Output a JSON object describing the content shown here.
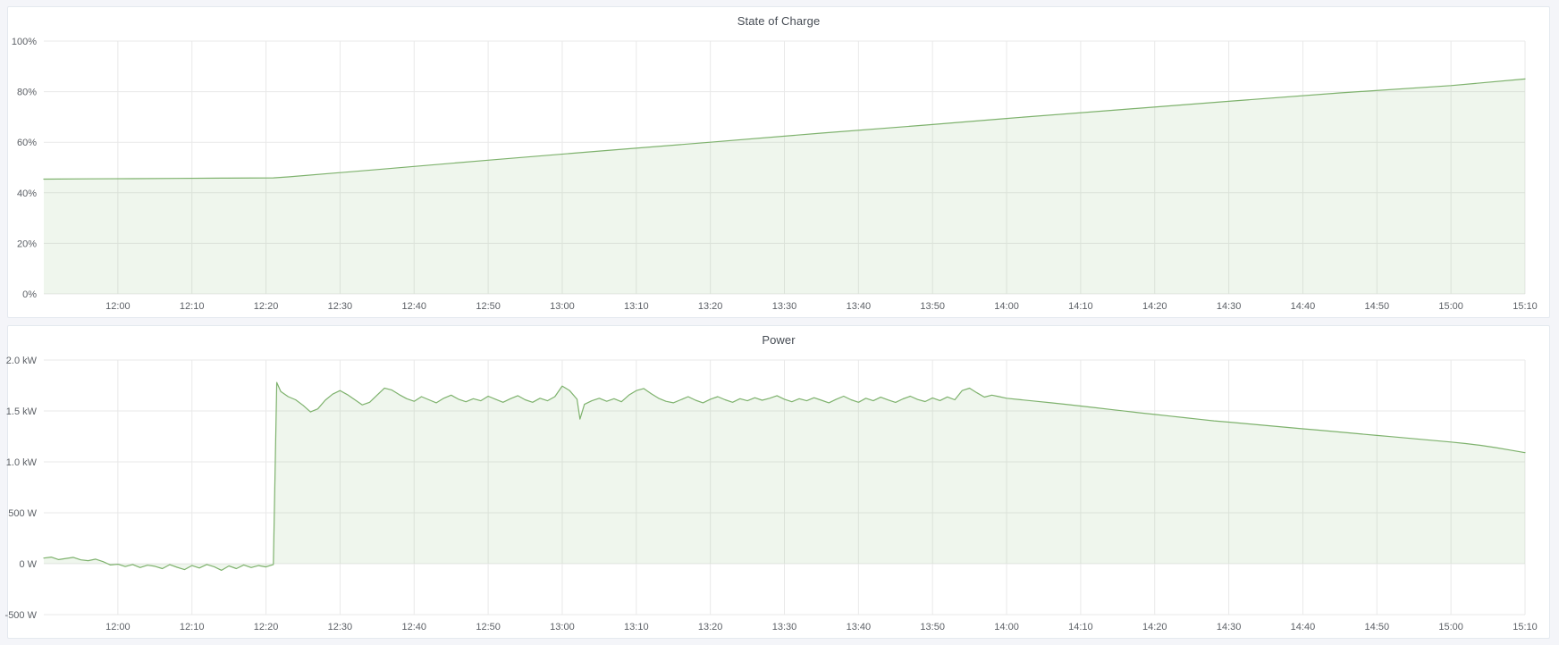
{
  "page": {
    "background": "#f4f5f9",
    "panel_background": "#ffffff",
    "panel_border": "#e4e9ef"
  },
  "colors": {
    "line": "#7eb26d",
    "fill_opacity": 0.12,
    "grid": "#e9e9e9",
    "axis_text": "#5c6066",
    "title_text": "#464c54"
  },
  "chart_data": [
    {
      "type": "area",
      "title": "State of Charge",
      "xlabel": "",
      "ylabel": "",
      "x_unit": "minutes after 12:00",
      "y_unit": "percent",
      "xlim": [
        -10,
        190
      ],
      "ylim": [
        0,
        100
      ],
      "grid": true,
      "legend": "none",
      "x_ticks": [
        [
          0,
          "12:00"
        ],
        [
          10,
          "12:10"
        ],
        [
          20,
          "12:20"
        ],
        [
          30,
          "12:30"
        ],
        [
          40,
          "12:40"
        ],
        [
          50,
          "12:50"
        ],
        [
          60,
          "13:00"
        ],
        [
          70,
          "13:10"
        ],
        [
          80,
          "13:20"
        ],
        [
          90,
          "13:30"
        ],
        [
          100,
          "13:40"
        ],
        [
          110,
          "13:50"
        ],
        [
          120,
          "14:00"
        ],
        [
          130,
          "14:10"
        ],
        [
          140,
          "14:20"
        ],
        [
          150,
          "14:30"
        ],
        [
          160,
          "14:40"
        ],
        [
          170,
          "14:50"
        ],
        [
          180,
          "15:00"
        ],
        [
          190,
          "15:10"
        ]
      ],
      "y_ticks": [
        [
          0,
          "0%"
        ],
        [
          20,
          "20%"
        ],
        [
          40,
          "40%"
        ],
        [
          60,
          "60%"
        ],
        [
          80,
          "80%"
        ],
        [
          100,
          "100%"
        ]
      ],
      "series": [
        {
          "name": "State of Charge",
          "points": [
            [
              -10,
              45.4
            ],
            [
              -4,
              45.5
            ],
            [
              2,
              45.6
            ],
            [
              8,
              45.7
            ],
            [
              14,
              45.8
            ],
            [
              21,
              45.9
            ],
            [
              23,
              46.3
            ],
            [
              35,
              49.2
            ],
            [
              50,
              52.9
            ],
            [
              65,
              56.5
            ],
            [
              80,
              60.0
            ],
            [
              95,
              63.6
            ],
            [
              110,
              67.0
            ],
            [
              120,
              69.4
            ],
            [
              135,
              72.8
            ],
            [
              150,
              76.2
            ],
            [
              165,
              79.5
            ],
            [
              180,
              82.4
            ],
            [
              190,
              85.0
            ]
          ]
        }
      ]
    },
    {
      "type": "area",
      "title": "Power",
      "xlabel": "",
      "ylabel": "",
      "x_unit": "minutes after 12:00",
      "y_unit": "watt",
      "xlim": [
        -10,
        190
      ],
      "ylim": [
        -500,
        2000
      ],
      "grid": true,
      "legend": "none",
      "x_ticks": [
        [
          0,
          "12:00"
        ],
        [
          10,
          "12:10"
        ],
        [
          20,
          "12:20"
        ],
        [
          30,
          "12:30"
        ],
        [
          40,
          "12:40"
        ],
        [
          50,
          "12:50"
        ],
        [
          60,
          "13:00"
        ],
        [
          70,
          "13:10"
        ],
        [
          80,
          "13:20"
        ],
        [
          90,
          "13:30"
        ],
        [
          100,
          "13:40"
        ],
        [
          110,
          "13:50"
        ],
        [
          120,
          "14:00"
        ],
        [
          130,
          "14:10"
        ],
        [
          140,
          "14:20"
        ],
        [
          150,
          "14:30"
        ],
        [
          160,
          "14:40"
        ],
        [
          170,
          "14:50"
        ],
        [
          180,
          "15:00"
        ],
        [
          190,
          "15:10"
        ]
      ],
      "y_ticks": [
        [
          -500,
          "-500 W"
        ],
        [
          0,
          "0 W"
        ],
        [
          500,
          "500 W"
        ],
        [
          1000,
          "1.0 kW"
        ],
        [
          1500,
          "1.5 kW"
        ],
        [
          2000,
          "2.0 kW"
        ]
      ],
      "series": [
        {
          "name": "Power",
          "points": [
            [
              -10,
              55
            ],
            [
              -9,
              65
            ],
            [
              -8,
              40
            ],
            [
              -7,
              52
            ],
            [
              -6,
              62
            ],
            [
              -5,
              38
            ],
            [
              -4,
              30
            ],
            [
              -3,
              45
            ],
            [
              -2,
              20
            ],
            [
              -1,
              -12
            ],
            [
              0,
              -5
            ],
            [
              1,
              -28
            ],
            [
              2,
              -8
            ],
            [
              3,
              -38
            ],
            [
              4,
              -15
            ],
            [
              5,
              -25
            ],
            [
              6,
              -48
            ],
            [
              7,
              -10
            ],
            [
              8,
              -35
            ],
            [
              9,
              -58
            ],
            [
              10,
              -18
            ],
            [
              11,
              -42
            ],
            [
              12,
              -8
            ],
            [
              13,
              -30
            ],
            [
              14,
              -65
            ],
            [
              15,
              -22
            ],
            [
              16,
              -48
            ],
            [
              17,
              -12
            ],
            [
              18,
              -38
            ],
            [
              19,
              -18
            ],
            [
              20,
              -32
            ],
            [
              21,
              -8
            ],
            [
              21.45,
              1780
            ],
            [
              22,
              1690
            ],
            [
              23,
              1640
            ],
            [
              24,
              1610
            ],
            [
              25,
              1555
            ],
            [
              26,
              1490
            ],
            [
              27,
              1520
            ],
            [
              28,
              1605
            ],
            [
              29,
              1665
            ],
            [
              30,
              1700
            ],
            [
              31,
              1660
            ],
            [
              32,
              1610
            ],
            [
              33,
              1560
            ],
            [
              34,
              1585
            ],
            [
              35,
              1655
            ],
            [
              36,
              1725
            ],
            [
              37,
              1705
            ],
            [
              38,
              1660
            ],
            [
              39,
              1620
            ],
            [
              40,
              1595
            ],
            [
              41,
              1640
            ],
            [
              42,
              1610
            ],
            [
              43,
              1580
            ],
            [
              44,
              1625
            ],
            [
              45,
              1655
            ],
            [
              46,
              1615
            ],
            [
              47,
              1590
            ],
            [
              48,
              1620
            ],
            [
              49,
              1600
            ],
            [
              50,
              1645
            ],
            [
              51,
              1615
            ],
            [
              52,
              1585
            ],
            [
              53,
              1620
            ],
            [
              54,
              1650
            ],
            [
              55,
              1610
            ],
            [
              56,
              1585
            ],
            [
              57,
              1625
            ],
            [
              58,
              1600
            ],
            [
              59,
              1640
            ],
            [
              60,
              1745
            ],
            [
              61,
              1700
            ],
            [
              62,
              1615
            ],
            [
              62.4,
              1420
            ],
            [
              63,
              1565
            ],
            [
              64,
              1600
            ],
            [
              65,
              1625
            ],
            [
              66,
              1595
            ],
            [
              67,
              1620
            ],
            [
              68,
              1590
            ],
            [
              69,
              1655
            ],
            [
              70,
              1700
            ],
            [
              71,
              1720
            ],
            [
              72,
              1670
            ],
            [
              73,
              1625
            ],
            [
              74,
              1595
            ],
            [
              75,
              1580
            ],
            [
              76,
              1610
            ],
            [
              77,
              1640
            ],
            [
              78,
              1605
            ],
            [
              79,
              1580
            ],
            [
              80,
              1615
            ],
            [
              81,
              1640
            ],
            [
              82,
              1610
            ],
            [
              83,
              1585
            ],
            [
              84,
              1620
            ],
            [
              85,
              1600
            ],
            [
              86,
              1630
            ],
            [
              87,
              1605
            ],
            [
              88,
              1625
            ],
            [
              89,
              1650
            ],
            [
              90,
              1615
            ],
            [
              91,
              1590
            ],
            [
              92,
              1620
            ],
            [
              93,
              1600
            ],
            [
              94,
              1630
            ],
            [
              95,
              1605
            ],
            [
              96,
              1580
            ],
            [
              97,
              1615
            ],
            [
              98,
              1645
            ],
            [
              99,
              1610
            ],
            [
              100,
              1585
            ],
            [
              101,
              1625
            ],
            [
              102,
              1600
            ],
            [
              103,
              1635
            ],
            [
              104,
              1608
            ],
            [
              105,
              1584
            ],
            [
              106,
              1618
            ],
            [
              107,
              1645
            ],
            [
              108,
              1612
            ],
            [
              109,
              1592
            ],
            [
              110,
              1628
            ],
            [
              111,
              1602
            ],
            [
              112,
              1638
            ],
            [
              113,
              1610
            ],
            [
              114,
              1700
            ],
            [
              115,
              1724
            ],
            [
              116,
              1678
            ],
            [
              117,
              1636
            ],
            [
              118,
              1655
            ],
            [
              119,
              1640
            ],
            [
              120,
              1625
            ],
            [
              122,
              1610
            ],
            [
              124,
              1595
            ],
            [
              126,
              1580
            ],
            [
              128,
              1565
            ],
            [
              130,
              1548
            ],
            [
              132,
              1532
            ],
            [
              134,
              1515
            ],
            [
              136,
              1498
            ],
            [
              138,
              1482
            ],
            [
              140,
              1466
            ],
            [
              142,
              1450
            ],
            [
              144,
              1434
            ],
            [
              146,
              1418
            ],
            [
              148,
              1403
            ],
            [
              150,
              1390
            ],
            [
              152,
              1377
            ],
            [
              154,
              1364
            ],
            [
              156,
              1351
            ],
            [
              158,
              1338
            ],
            [
              160,
              1325
            ],
            [
              162,
              1312
            ],
            [
              164,
              1299
            ],
            [
              166,
              1286
            ],
            [
              168,
              1273
            ],
            [
              170,
              1260
            ],
            [
              172,
              1247
            ],
            [
              174,
              1234
            ],
            [
              176,
              1221
            ],
            [
              178,
              1208
            ],
            [
              180,
              1195
            ],
            [
              182,
              1180
            ],
            [
              184,
              1162
            ],
            [
              186,
              1140
            ],
            [
              188,
              1116
            ],
            [
              190,
              1090
            ]
          ]
        }
      ]
    }
  ]
}
